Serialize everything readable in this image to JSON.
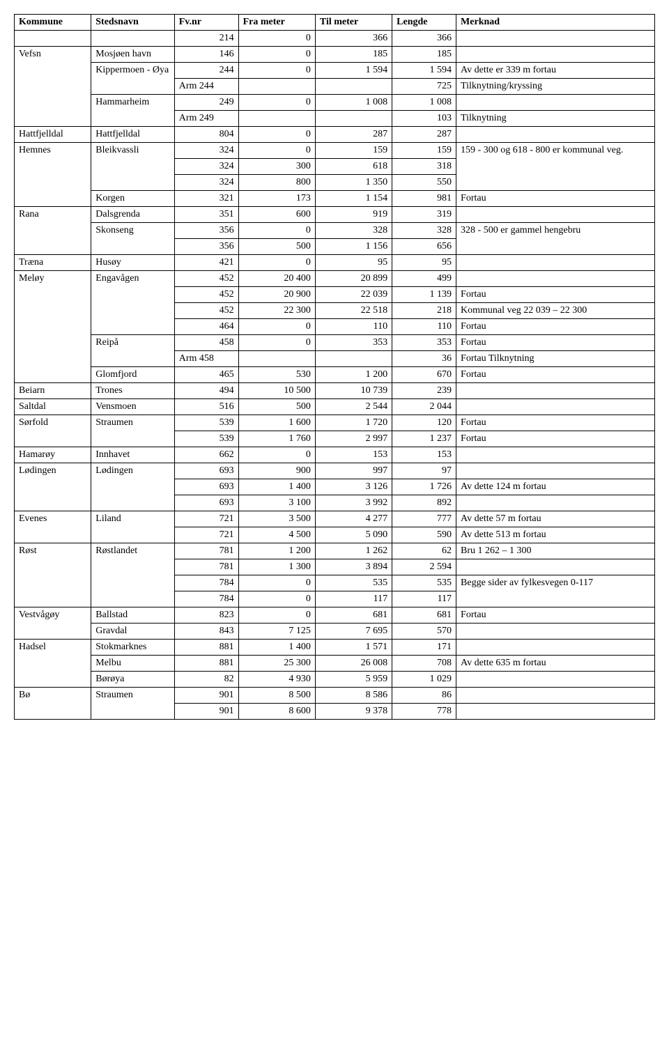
{
  "headers": [
    "Kommune",
    "Stedsnavn",
    "Fv.nr",
    "Fra meter",
    "Til meter",
    "Lengde",
    "Merknad"
  ],
  "rows": [
    {
      "kommune": "",
      "sted": "",
      "fv": "214",
      "fra": "0",
      "til": "366",
      "len": "366",
      "merk": ""
    },
    {
      "kommune": "Vefsn",
      "kommune_rs": 5,
      "sted": "Mosjøen havn",
      "fv": "146",
      "fra": "0",
      "til": "185",
      "len": "185",
      "merk": ""
    },
    {
      "sted": "Kippermoen - Øya",
      "sted_rs": 2,
      "fv": "244",
      "fra": "0",
      "til": "1 594",
      "len": "1 594",
      "merk": "Av dette er 339 m fortau"
    },
    {
      "fv": "Arm 244",
      "fv_align": "left",
      "fra": "",
      "til": "",
      "len": "725",
      "merk": "Tilknytning/kryssing"
    },
    {
      "sted": "Hammarheim",
      "sted_rs": 2,
      "fv": "249",
      "fra": "0",
      "til": "1 008",
      "len": "1 008",
      "merk": ""
    },
    {
      "fv": "Arm 249",
      "fv_align": "left",
      "fra": "",
      "til": "",
      "len": "103",
      "merk": "Tilknytning"
    },
    {
      "kommune": "Hattfjelldal",
      "sted": "Hattfjelldal",
      "fv": "804",
      "fra": "0",
      "til": "287",
      "len": "287",
      "merk": ""
    },
    {
      "kommune": "Hemnes",
      "kommune_rs": 4,
      "sted": "Bleikvassli",
      "sted_rs": 3,
      "fv": "324",
      "fra": "0",
      "til": "159",
      "len": "159",
      "merk": "159 - 300 og 618 - 800 er kommunal veg.",
      "merk_rs": 3
    },
    {
      "fv": "324",
      "fra": "300",
      "til": "618",
      "len": "318"
    },
    {
      "fv": "324",
      "fra": "800",
      "til": "1 350",
      "len": "550"
    },
    {
      "sted": "Korgen",
      "fv": "321",
      "fra": "173",
      "til": "1 154",
      "len": "981",
      "merk": "Fortau"
    },
    {
      "kommune": "Rana",
      "kommune_rs": 3,
      "sted": "Dalsgrenda",
      "fv": "351",
      "fra": "600",
      "til": "919",
      "len": "319",
      "merk": ""
    },
    {
      "sted": "Skonseng",
      "sted_rs": 2,
      "fv": "356",
      "fra": "0",
      "til": "328",
      "len": "328",
      "merk": "328 - 500 er gammel hengebru",
      "merk_rs": 2
    },
    {
      "fv": "356",
      "fra": "500",
      "til": "1 156",
      "len": "656"
    },
    {
      "kommune": "Træna",
      "sted": "Husøy",
      "fv": "421",
      "fra": "0",
      "til": "95",
      "len": "95",
      "merk": ""
    },
    {
      "kommune": "Meløy",
      "kommune_rs": 7,
      "sted": "Engavågen",
      "sted_rs": 4,
      "fv": "452",
      "fra": "20 400",
      "til": "20 899",
      "len": "499",
      "merk": ""
    },
    {
      "fv": "452",
      "fra": "20 900",
      "til": "22 039",
      "len": "1 139",
      "merk": "Fortau"
    },
    {
      "fv": "452",
      "fra": "22 300",
      "til": "22 518",
      "len": "218",
      "merk": "Kommunal veg 22 039 – 22 300"
    },
    {
      "fv": "464",
      "fra": "0",
      "til": "110",
      "len": "110",
      "merk": "Fortau"
    },
    {
      "sted": "Reipå",
      "sted_rs": 2,
      "fv": "458",
      "fra": "0",
      "til": "353",
      "len": "353",
      "merk": "Fortau"
    },
    {
      "fv": "Arm 458",
      "fv_align": "left",
      "fra": "",
      "til": "",
      "len": "36",
      "merk": "Fortau Tilknytning"
    },
    {
      "sted": "Glomfjord",
      "fv": "465",
      "fra": "530",
      "til": "1 200",
      "len": "670",
      "merk": "Fortau"
    },
    {
      "kommune": "Beiarn",
      "sted": "Trones",
      "fv": "494",
      "fra": "10 500",
      "til": "10 739",
      "len": "239",
      "merk": ""
    },
    {
      "kommune": "Saltdal",
      "sted": "Vensmoen",
      "fv": "516",
      "fra": "500",
      "til": "2 544",
      "len": "2 044",
      "merk": ""
    },
    {
      "kommune": "Sørfold",
      "kommune_rs": 2,
      "sted": "Straumen",
      "sted_rs": 2,
      "fv": "539",
      "fra": "1 600",
      "til": "1 720",
      "len": "120",
      "merk": "Fortau"
    },
    {
      "fv": "539",
      "fra": "1 760",
      "til": "2 997",
      "len": "1 237",
      "merk": "Fortau"
    },
    {
      "kommune": "Hamarøy",
      "sted": "Innhavet",
      "fv": "662",
      "fra": "0",
      "til": "153",
      "len": "153",
      "merk": ""
    },
    {
      "kommune": "Lødingen",
      "kommune_rs": 3,
      "sted": "Lødingen",
      "sted_rs": 3,
      "fv": "693",
      "fra": "900",
      "til": "997",
      "len": "97",
      "merk": ""
    },
    {
      "fv": "693",
      "fra": "1 400",
      "til": "3 126",
      "len": "1 726",
      "merk": "Av dette 124 m fortau"
    },
    {
      "fv": "693",
      "fra": "3 100",
      "til": "3 992",
      "len": "892",
      "merk": ""
    },
    {
      "kommune": "Evenes",
      "kommune_rs": 2,
      "sted": "Liland",
      "sted_rs": 2,
      "fv": "721",
      "fra": "3 500",
      "til": "4 277",
      "len": "777",
      "merk": "Av dette 57 m fortau"
    },
    {
      "fv": "721",
      "fra": "4 500",
      "til": "5 090",
      "len": "590",
      "merk": "Av dette 513 m fortau"
    },
    {
      "kommune": "Røst",
      "kommune_rs": 4,
      "sted": "Røstlandet",
      "sted_rs": 4,
      "fv": "781",
      "fra": "1 200",
      "til": "1 262",
      "len": "62",
      "merk": "Bru 1 262 – 1 300"
    },
    {
      "fv": "781",
      "fra": "1 300",
      "til": "3 894",
      "len": "2 594",
      "merk": ""
    },
    {
      "fv": "784",
      "fra": "0",
      "til": "535",
      "len": "535",
      "merk": "Begge sider av fylkesvegen 0-117",
      "merk_rs": 2
    },
    {
      "fv": "784",
      "fra": "0",
      "til": "117",
      "len": "117"
    },
    {
      "kommune": "Vestvågøy",
      "kommune_rs": 2,
      "sted": "Ballstad",
      "fv": "823",
      "fra": "0",
      "til": "681",
      "len": "681",
      "merk": "Fortau"
    },
    {
      "sted": "Gravdal",
      "fv": "843",
      "fra": "7 125",
      "til": "7 695",
      "len": "570",
      "merk": ""
    },
    {
      "kommune": "Hadsel",
      "kommune_rs": 3,
      "sted": "Stokmarknes",
      "fv": "881",
      "fra": "1 400",
      "til": "1 571",
      "len": "171",
      "merk": ""
    },
    {
      "sted": "Melbu",
      "fv": "881",
      "fra": "25 300",
      "til": "26 008",
      "len": "708",
      "merk": "Av dette 635 m fortau"
    },
    {
      "sted": "Børøya",
      "fv": "82",
      "fra": "4 930",
      "til": "5 959",
      "len": "1 029",
      "merk": ""
    },
    {
      "kommune": "Bø",
      "kommune_rs": 2,
      "sted": "Straumen",
      "sted_rs": 2,
      "fv": "901",
      "fra": "8 500",
      "til": "8 586",
      "len": "86",
      "merk": ""
    },
    {
      "fv": "901",
      "fra": "8 600",
      "til": "9 378",
      "len": "778",
      "merk": ""
    }
  ]
}
